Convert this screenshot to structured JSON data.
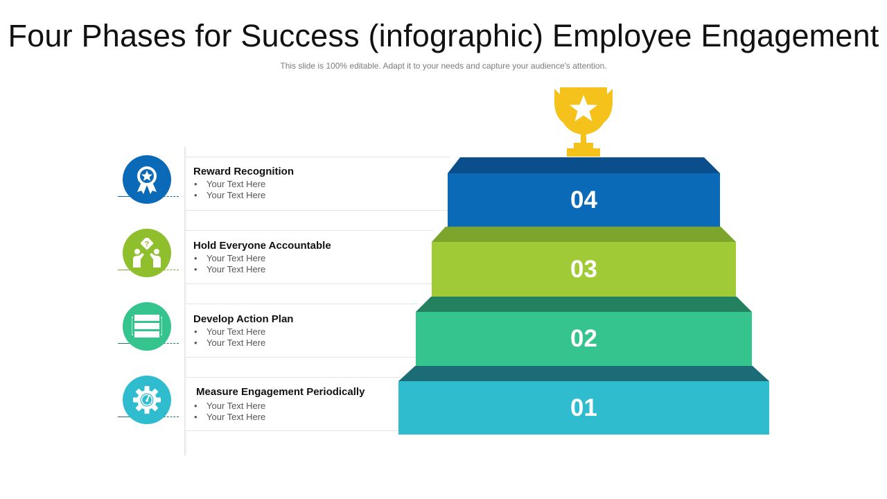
{
  "title": "Four Phases for Success (infographic) Employee Engagement",
  "subtitle": "This slide is 100% editable. Adapt it to your needs and capture your audience's attention.",
  "bullet_char": "•",
  "colors": {
    "phase_01": "#2fbcce",
    "phase_02": "#36c48e",
    "phase_03": "#a1cb36",
    "phase_04": "#0b6ab8",
    "trophy": "#f5c21b"
  },
  "phases": [
    {
      "icon": "award-ribbon-icon",
      "title": "Reward Recognition",
      "bullets": [
        "Your Text Here",
        "Your Text Here"
      ]
    },
    {
      "icon": "team-question-icon",
      "title": "Hold Everyone Accountable",
      "bullets": [
        "Your Text Here",
        "Your Text Here"
      ]
    },
    {
      "icon": "action-plan-icon",
      "title": "Develop Action Plan",
      "bullets": [
        "Your Text Here",
        "Your Text Here"
      ]
    },
    {
      "icon": "gear-gauge-icon",
      "title": "Measure Engagement Periodically",
      "bullets": [
        "Your Text Here",
        "Your Text Here"
      ]
    }
  ],
  "steps": [
    {
      "label": "04"
    },
    {
      "label": "03"
    },
    {
      "label": "02"
    },
    {
      "label": "01"
    }
  ],
  "trophy_icon": "trophy-star-icon"
}
